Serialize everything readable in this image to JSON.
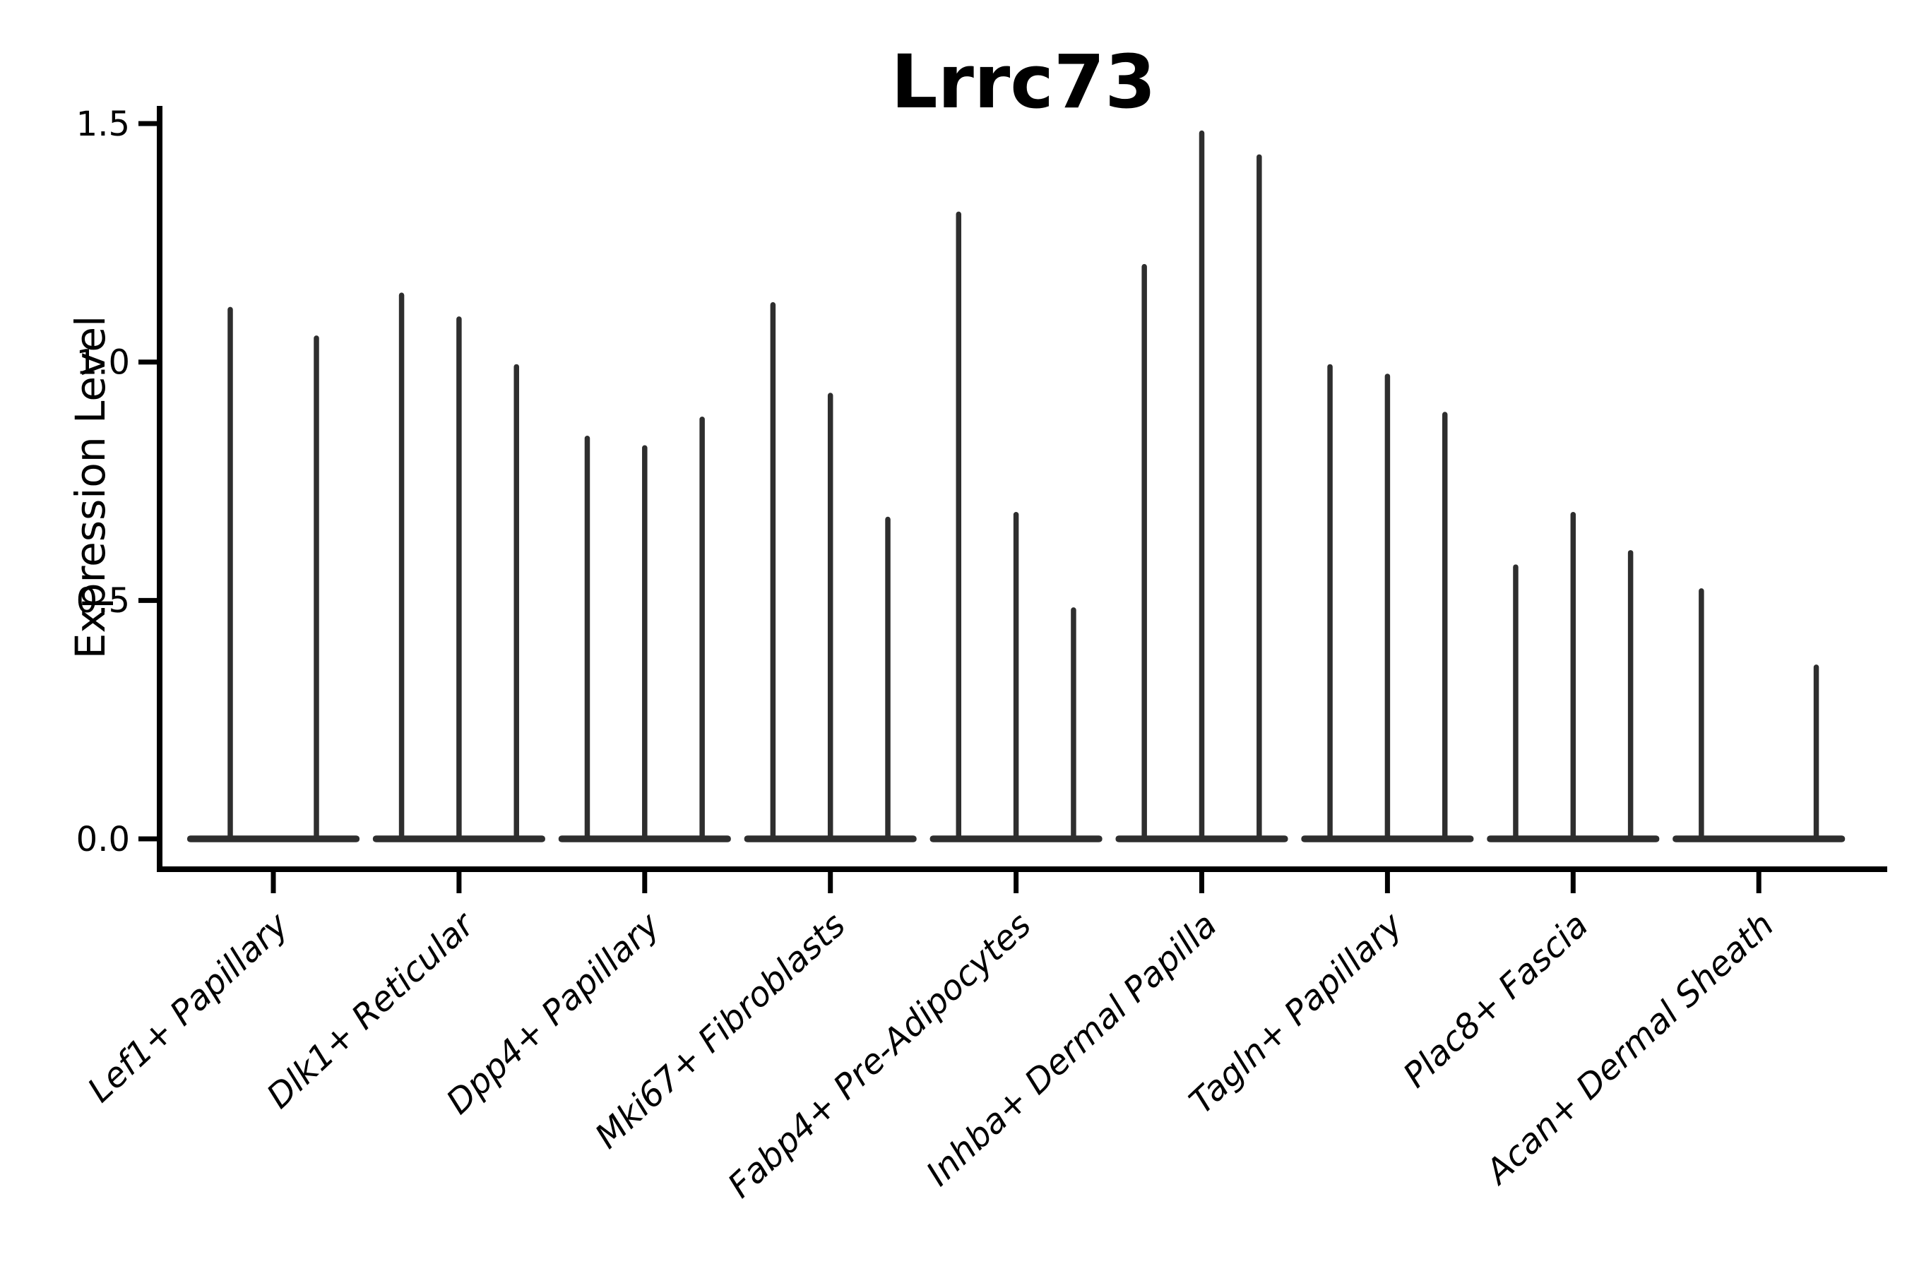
{
  "title": "Lrrc73",
  "chart_data": {
    "type": "violin",
    "title": "Lrrc73",
    "xlabel": "",
    "ylabel": "Expression Level",
    "yticks": [
      0.0,
      0.5,
      1.0,
      1.5
    ],
    "ytick_labels": [
      "0.0",
      "0.5",
      "1.0",
      "1.5"
    ],
    "ylim": [
      -0.06,
      1.54
    ],
    "grid": false,
    "legend": "none",
    "x_label_rotation_deg": 43,
    "x_labels_italic": true,
    "categories": [
      "Lef1+ Papillary",
      "Dlk1+ Reticular",
      "Dpp4+ Papillary",
      "Mki67+ Fibroblasts",
      "Fabp4+ Pre-Adipocytes",
      "Inhba+ Dermal Papilla",
      "Tagln+ Papillary",
      "Plac8+ Fascia",
      "Acan+ Dermal Sheath"
    ],
    "groups": [
      {
        "category": "Lef1+ Papillary",
        "violin_max_values": [
          1.11,
          1.05
        ]
      },
      {
        "category": "Dlk1+ Reticular",
        "violin_max_values": [
          1.14,
          1.09,
          0.99
        ]
      },
      {
        "category": "Dpp4+ Papillary",
        "violin_max_values": [
          0.84,
          0.82,
          0.88
        ]
      },
      {
        "category": "Mki67+ Fibroblasts",
        "violin_max_values": [
          1.12,
          0.93,
          0.67
        ]
      },
      {
        "category": "Fabp4+ Pre-Adipocytes",
        "violin_max_values": [
          1.31,
          0.68,
          0.48
        ]
      },
      {
        "category": "Inhba+ Dermal Papilla",
        "violin_max_values": [
          1.2,
          1.48,
          1.43
        ]
      },
      {
        "category": "Tagln+ Papillary",
        "violin_max_values": [
          0.99,
          0.97,
          0.89
        ]
      },
      {
        "category": "Plac8+ Fascia",
        "violin_max_values": [
          0.57,
          0.68,
          0.6
        ]
      },
      {
        "category": "Acan+ Dermal Sheath",
        "violin_max_values": [
          0.52,
          0.0,
          0.36
        ]
      }
    ],
    "colors": {
      "violin": "#2e2e2e",
      "axis": "#000000",
      "text": "#000000",
      "background": "#ffffff"
    }
  }
}
